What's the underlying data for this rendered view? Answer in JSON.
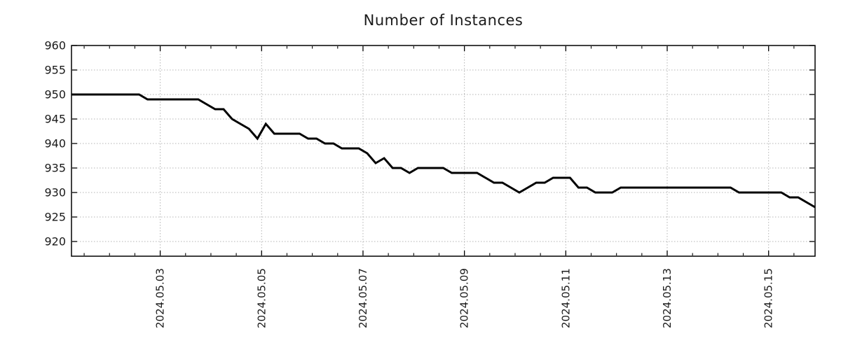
{
  "chart_data": {
    "type": "line",
    "title": "Number of Instances",
    "xlabel": "",
    "ylabel": "",
    "legend": "none",
    "grid": "dotted",
    "x_start": "2024-05-01 06:00",
    "x_step_hours": 4,
    "values": [
      950,
      950,
      950,
      950,
      950,
      950,
      950,
      950,
      950,
      949,
      949,
      949,
      949,
      949,
      949,
      949,
      948,
      947,
      947,
      945,
      944,
      943,
      941,
      944,
      942,
      942,
      942,
      942,
      941,
      941,
      940,
      940,
      939,
      939,
      939,
      938,
      936,
      937,
      935,
      935,
      934,
      935,
      935,
      935,
      935,
      934,
      934,
      934,
      934,
      933,
      932,
      932,
      931,
      930,
      931,
      932,
      932,
      933,
      933,
      933,
      931,
      931,
      930,
      930,
      930,
      931,
      931,
      931,
      931,
      931,
      931,
      931,
      931,
      931,
      931,
      931,
      931,
      931,
      931,
      930,
      930,
      930,
      930,
      930,
      930,
      929,
      929,
      928,
      927
    ],
    "x_tick_labels": [
      "2024.05.03",
      "2024.05.05",
      "2024.05.07",
      "2024.05.09",
      "2024.05.11",
      "2024.05.13",
      "2024.05.15"
    ],
    "x_major_tick_indices": [
      10.5,
      22.5,
      34.5,
      46.5,
      58.5,
      70.5,
      82.5
    ],
    "x_minor_tick_step": 3,
    "x_minor_tick_start": 1.5,
    "x_minor_tick_end": 85.5,
    "y_ticks": [
      920,
      925,
      930,
      935,
      940,
      945,
      950,
      955,
      960
    ],
    "ylim": [
      917,
      960
    ],
    "line_color": "#000000",
    "line_width": 3,
    "grid_color": "#b3b3b3",
    "axis_color": "#000000",
    "text_color": "#1a1a1a",
    "background_color": "#ffffff"
  }
}
